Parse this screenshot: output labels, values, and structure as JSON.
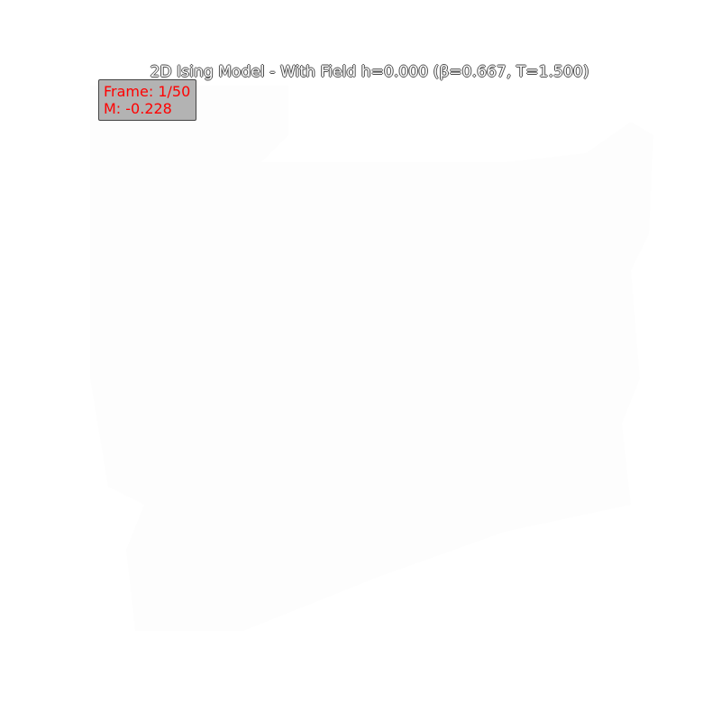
{
  "chart_data": {
    "type": "heatmap",
    "title": "2D Ising Model - With Field h=0.000 (β=0.667, T=1.500)",
    "xlabel": "",
    "ylabel": "",
    "grid": false,
    "colormap": {
      "spin_up": "#ffffff",
      "spin_down": "#fdfdfd"
    },
    "annotations": {
      "frame_text": "Frame: 1/50",
      "magnetization_text": "M: -0.228",
      "frame": 1,
      "total_frames": 50,
      "magnetization": -0.228
    }
  },
  "colors": {
    "annotation_text": "#ff0000",
    "annotation_box": "#b3b3b3",
    "background": "#ffffff"
  }
}
